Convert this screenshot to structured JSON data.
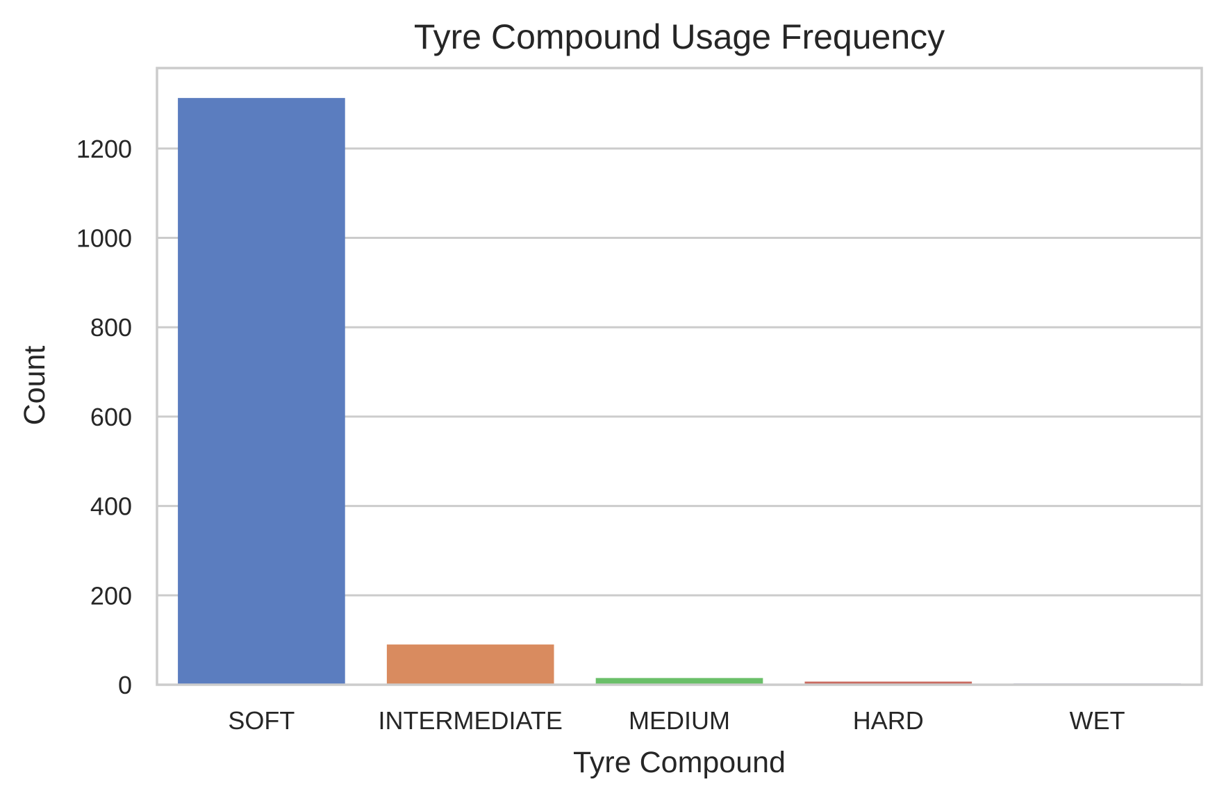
{
  "chart_data": {
    "type": "bar",
    "title": "Tyre Compound Usage Frequency",
    "xlabel": "Tyre Compound",
    "ylabel": "Count",
    "categories": [
      "SOFT",
      "INTERMEDIATE",
      "MEDIUM",
      "HARD",
      "WET"
    ],
    "values": [
      1313,
      90,
      15,
      7,
      3
    ],
    "colors": [
      "#5b7dbf",
      "#d98b5f",
      "#6abf69",
      "#c96a60",
      "#a9a5cc"
    ],
    "yticks": [
      0,
      200,
      400,
      600,
      800,
      1000,
      1200
    ],
    "ylim": [
      0,
      1380
    ],
    "grid": true,
    "grid_axis": "y",
    "legend": "none"
  }
}
